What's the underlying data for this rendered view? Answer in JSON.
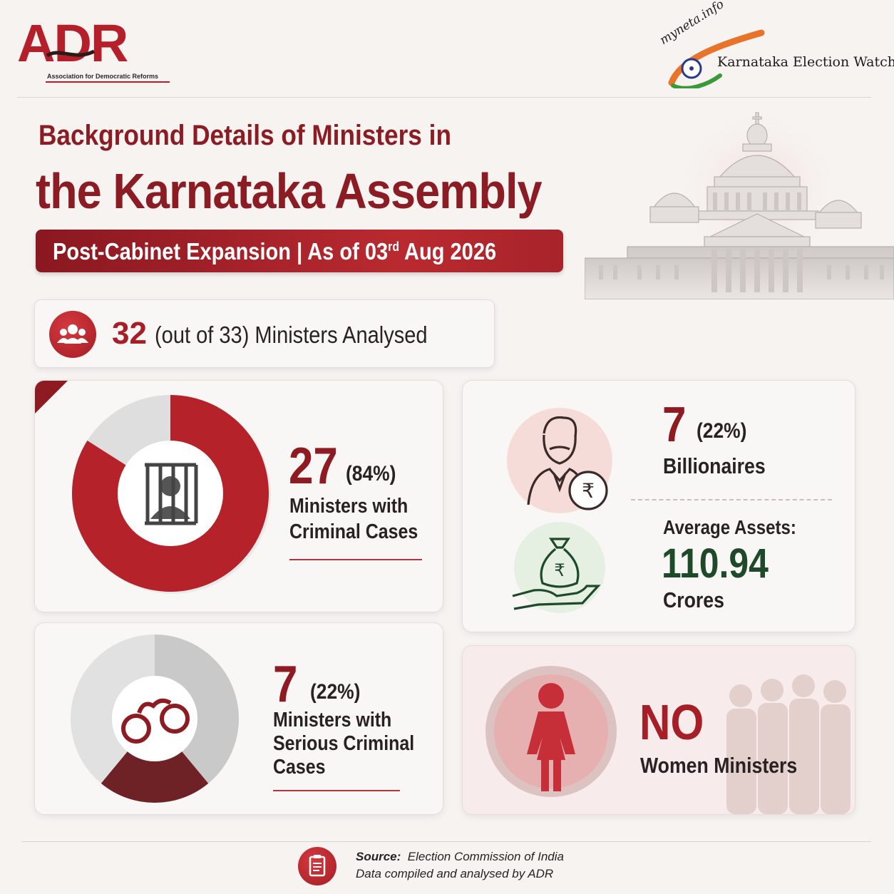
{
  "header": {
    "adr_logo_text": "ADR",
    "adr_logo_subtext": "Association for Democratic Reforms",
    "myneta_text": "myneta.info",
    "kew_text": "Karnataka Election Watch"
  },
  "title": {
    "line1": "Background Details of Ministers in",
    "line2": "the Karnataka Assembly",
    "banner_prefix": "Post-Cabinet Expansion | As of 03",
    "banner_sup": "rd",
    "banner_suffix": " Aug 2026"
  },
  "analysed": {
    "count": "32",
    "label": "(out of 33) Ministers Analysed"
  },
  "criminal": {
    "number": "27",
    "percent": "(84%)",
    "label_line1": "Ministers with",
    "label_line2": "Criminal Cases",
    "fraction": 0.84
  },
  "serious": {
    "number": "7",
    "percent": "(22%)",
    "label_line1": "Ministers with",
    "label_line2": "Serious Criminal",
    "label_line3": "Cases",
    "fraction": 0.22
  },
  "assets": {
    "billionaires_number": "7",
    "billionaires_percent": "(22%)",
    "billionaires_label": "Billionaires",
    "avg_label": "Average Assets:",
    "avg_value": "110.94",
    "avg_unit": "Crores"
  },
  "women": {
    "headline": "NO",
    "label": "Women Ministers"
  },
  "footer": {
    "source_label": "Source:",
    "source_value": "Election Commission of India",
    "compiled": "Data compiled and analysed by ADR"
  },
  "colors": {
    "primary_red": "#a61f27",
    "dark_red": "#8e1a22",
    "maroon": "#6e2226",
    "green": "#1e4a2a",
    "grey": "#dcdcdc"
  },
  "icons": [
    "people-icon",
    "prisoner-icon",
    "handcuffs-icon",
    "billionaire-icon",
    "money-bag-icon",
    "woman-icon",
    "document-icon",
    "building-icon"
  ]
}
